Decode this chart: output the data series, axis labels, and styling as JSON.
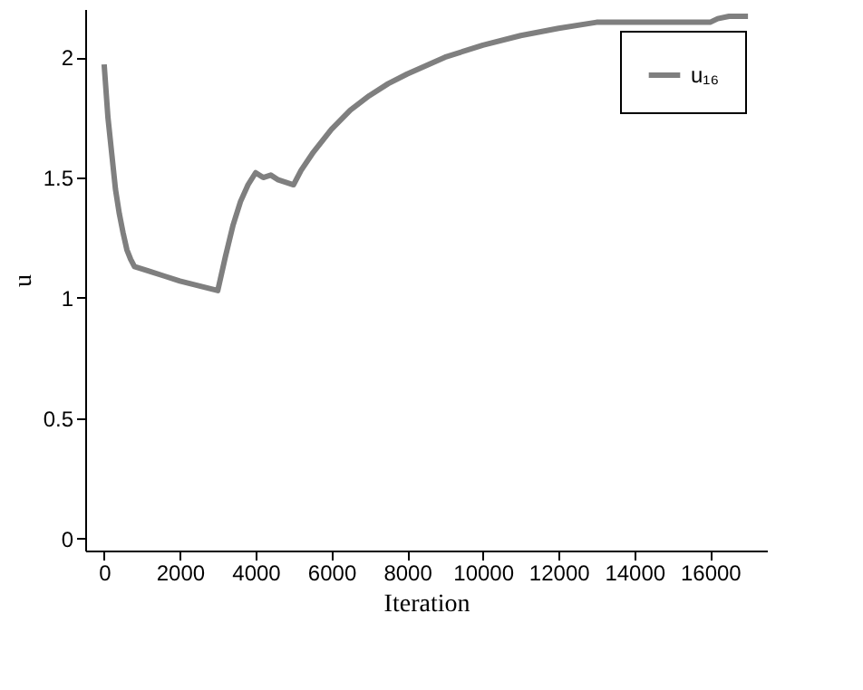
{
  "chart_data": {
    "type": "line",
    "xlabel": "Iteration",
    "ylabel": "u",
    "series": [
      {
        "name": "u₁₆",
        "color": "#7f7f7f",
        "x": [
          0,
          100,
          200,
          300,
          400,
          500,
          600,
          700,
          800,
          1200,
          1600,
          2000,
          2500,
          3000,
          3200,
          3400,
          3600,
          3800,
          4000,
          4200,
          4400,
          4600,
          5000,
          5200,
          5500,
          6000,
          6500,
          7000,
          7500,
          8000,
          9000,
          10000,
          11000,
          12000,
          13000,
          14000,
          15000,
          16000,
          16200,
          16500,
          17000
        ],
        "values": [
          1.97,
          1.75,
          1.6,
          1.45,
          1.35,
          1.27,
          1.2,
          1.16,
          1.13,
          1.11,
          1.09,
          1.07,
          1.05,
          1.03,
          1.17,
          1.3,
          1.4,
          1.47,
          1.52,
          1.5,
          1.51,
          1.49,
          1.47,
          1.53,
          1.6,
          1.7,
          1.78,
          1.84,
          1.89,
          1.93,
          2.0,
          2.05,
          2.09,
          2.12,
          2.145,
          2.145,
          2.145,
          2.145,
          2.16,
          2.17,
          2.17
        ]
      }
    ],
    "xlim": [
      -500,
      17500
    ],
    "xticks": [
      0,
      2000,
      4000,
      6000,
      8000,
      10000,
      12000,
      14000,
      16000
    ],
    "ylim": [
      -0.05,
      2.2
    ],
    "yticks": [
      0,
      0.5,
      1,
      1.5,
      2
    ],
    "grid": false,
    "legend": "right",
    "line_style": "solid",
    "marker": "none"
  }
}
